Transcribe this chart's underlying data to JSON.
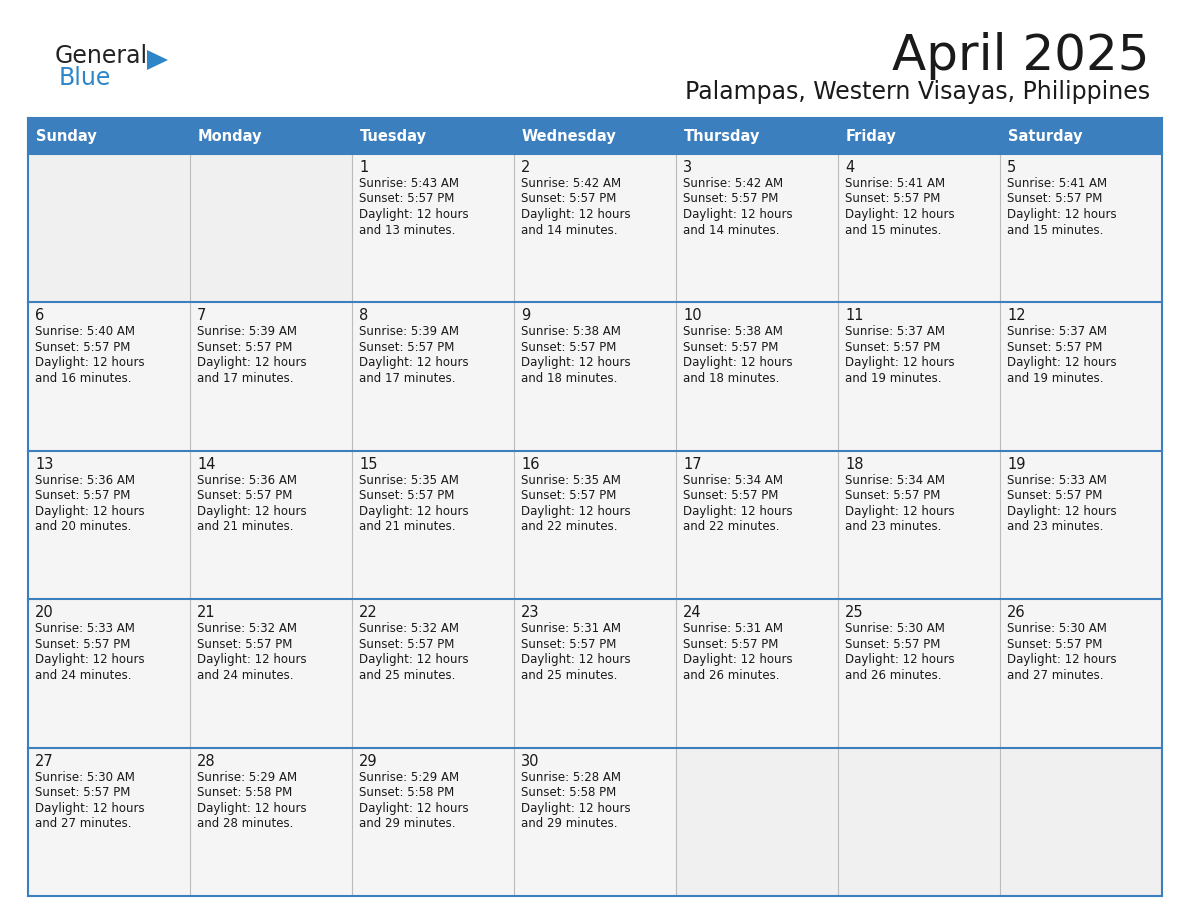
{
  "title": "April 2025",
  "subtitle": "Palampas, Western Visayas, Philippines",
  "header_bg_color": "#3c7fbf",
  "header_text_color": "#ffffff",
  "cell_bg_empty": "#eeeeee",
  "cell_bg_filled": "#f5f5f5",
  "border_color": "#3c7fbf",
  "text_color": "#1a1a1a",
  "day_names": [
    "Sunday",
    "Monday",
    "Tuesday",
    "Wednesday",
    "Thursday",
    "Friday",
    "Saturday"
  ],
  "weeks": [
    [
      {
        "day": "",
        "sunrise": "",
        "sunset": "",
        "daylight": ""
      },
      {
        "day": "",
        "sunrise": "",
        "sunset": "",
        "daylight": ""
      },
      {
        "day": "1",
        "sunrise": "Sunrise: 5:43 AM",
        "sunset": "Sunset: 5:57 PM",
        "daylight": "Daylight: 12 hours\nand 13 minutes."
      },
      {
        "day": "2",
        "sunrise": "Sunrise: 5:42 AM",
        "sunset": "Sunset: 5:57 PM",
        "daylight": "Daylight: 12 hours\nand 14 minutes."
      },
      {
        "day": "3",
        "sunrise": "Sunrise: 5:42 AM",
        "sunset": "Sunset: 5:57 PM",
        "daylight": "Daylight: 12 hours\nand 14 minutes."
      },
      {
        "day": "4",
        "sunrise": "Sunrise: 5:41 AM",
        "sunset": "Sunset: 5:57 PM",
        "daylight": "Daylight: 12 hours\nand 15 minutes."
      },
      {
        "day": "5",
        "sunrise": "Sunrise: 5:41 AM",
        "sunset": "Sunset: 5:57 PM",
        "daylight": "Daylight: 12 hours\nand 15 minutes."
      }
    ],
    [
      {
        "day": "6",
        "sunrise": "Sunrise: 5:40 AM",
        "sunset": "Sunset: 5:57 PM",
        "daylight": "Daylight: 12 hours\nand 16 minutes."
      },
      {
        "day": "7",
        "sunrise": "Sunrise: 5:39 AM",
        "sunset": "Sunset: 5:57 PM",
        "daylight": "Daylight: 12 hours\nand 17 minutes."
      },
      {
        "day": "8",
        "sunrise": "Sunrise: 5:39 AM",
        "sunset": "Sunset: 5:57 PM",
        "daylight": "Daylight: 12 hours\nand 17 minutes."
      },
      {
        "day": "9",
        "sunrise": "Sunrise: 5:38 AM",
        "sunset": "Sunset: 5:57 PM",
        "daylight": "Daylight: 12 hours\nand 18 minutes."
      },
      {
        "day": "10",
        "sunrise": "Sunrise: 5:38 AM",
        "sunset": "Sunset: 5:57 PM",
        "daylight": "Daylight: 12 hours\nand 18 minutes."
      },
      {
        "day": "11",
        "sunrise": "Sunrise: 5:37 AM",
        "sunset": "Sunset: 5:57 PM",
        "daylight": "Daylight: 12 hours\nand 19 minutes."
      },
      {
        "day": "12",
        "sunrise": "Sunrise: 5:37 AM",
        "sunset": "Sunset: 5:57 PM",
        "daylight": "Daylight: 12 hours\nand 19 minutes."
      }
    ],
    [
      {
        "day": "13",
        "sunrise": "Sunrise: 5:36 AM",
        "sunset": "Sunset: 5:57 PM",
        "daylight": "Daylight: 12 hours\nand 20 minutes."
      },
      {
        "day": "14",
        "sunrise": "Sunrise: 5:36 AM",
        "sunset": "Sunset: 5:57 PM",
        "daylight": "Daylight: 12 hours\nand 21 minutes."
      },
      {
        "day": "15",
        "sunrise": "Sunrise: 5:35 AM",
        "sunset": "Sunset: 5:57 PM",
        "daylight": "Daylight: 12 hours\nand 21 minutes."
      },
      {
        "day": "16",
        "sunrise": "Sunrise: 5:35 AM",
        "sunset": "Sunset: 5:57 PM",
        "daylight": "Daylight: 12 hours\nand 22 minutes."
      },
      {
        "day": "17",
        "sunrise": "Sunrise: 5:34 AM",
        "sunset": "Sunset: 5:57 PM",
        "daylight": "Daylight: 12 hours\nand 22 minutes."
      },
      {
        "day": "18",
        "sunrise": "Sunrise: 5:34 AM",
        "sunset": "Sunset: 5:57 PM",
        "daylight": "Daylight: 12 hours\nand 23 minutes."
      },
      {
        "day": "19",
        "sunrise": "Sunrise: 5:33 AM",
        "sunset": "Sunset: 5:57 PM",
        "daylight": "Daylight: 12 hours\nand 23 minutes."
      }
    ],
    [
      {
        "day": "20",
        "sunrise": "Sunrise: 5:33 AM",
        "sunset": "Sunset: 5:57 PM",
        "daylight": "Daylight: 12 hours\nand 24 minutes."
      },
      {
        "day": "21",
        "sunrise": "Sunrise: 5:32 AM",
        "sunset": "Sunset: 5:57 PM",
        "daylight": "Daylight: 12 hours\nand 24 minutes."
      },
      {
        "day": "22",
        "sunrise": "Sunrise: 5:32 AM",
        "sunset": "Sunset: 5:57 PM",
        "daylight": "Daylight: 12 hours\nand 25 minutes."
      },
      {
        "day": "23",
        "sunrise": "Sunrise: 5:31 AM",
        "sunset": "Sunset: 5:57 PM",
        "daylight": "Daylight: 12 hours\nand 25 minutes."
      },
      {
        "day": "24",
        "sunrise": "Sunrise: 5:31 AM",
        "sunset": "Sunset: 5:57 PM",
        "daylight": "Daylight: 12 hours\nand 26 minutes."
      },
      {
        "day": "25",
        "sunrise": "Sunrise: 5:30 AM",
        "sunset": "Sunset: 5:57 PM",
        "daylight": "Daylight: 12 hours\nand 26 minutes."
      },
      {
        "day": "26",
        "sunrise": "Sunrise: 5:30 AM",
        "sunset": "Sunset: 5:57 PM",
        "daylight": "Daylight: 12 hours\nand 27 minutes."
      }
    ],
    [
      {
        "day": "27",
        "sunrise": "Sunrise: 5:30 AM",
        "sunset": "Sunset: 5:57 PM",
        "daylight": "Daylight: 12 hours\nand 27 minutes."
      },
      {
        "day": "28",
        "sunrise": "Sunrise: 5:29 AM",
        "sunset": "Sunset: 5:58 PM",
        "daylight": "Daylight: 12 hours\nand 28 minutes."
      },
      {
        "day": "29",
        "sunrise": "Sunrise: 5:29 AM",
        "sunset": "Sunset: 5:58 PM",
        "daylight": "Daylight: 12 hours\nand 29 minutes."
      },
      {
        "day": "30",
        "sunrise": "Sunrise: 5:28 AM",
        "sunset": "Sunset: 5:58 PM",
        "daylight": "Daylight: 12 hours\nand 29 minutes."
      },
      {
        "day": "",
        "sunrise": "",
        "sunset": "",
        "daylight": ""
      },
      {
        "day": "",
        "sunrise": "",
        "sunset": "",
        "daylight": ""
      },
      {
        "day": "",
        "sunrise": "",
        "sunset": "",
        "daylight": ""
      }
    ]
  ]
}
